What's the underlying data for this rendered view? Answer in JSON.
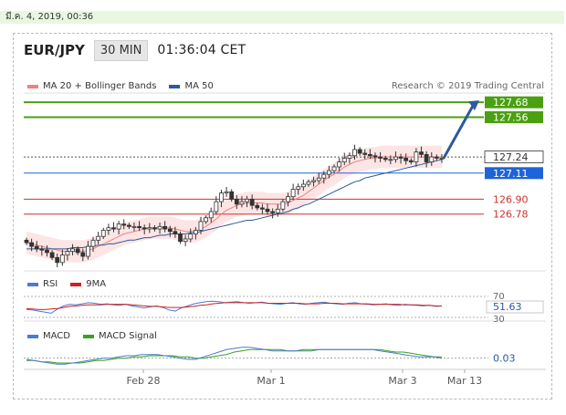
{
  "date_bar": {
    "text": "มี.ค. 4, 2019, 00:36"
  },
  "header": {
    "pair": "EUR/JPY",
    "timeframe": "30 MIN",
    "clock": "01:36:04 CET"
  },
  "legend": {
    "items": [
      {
        "label": "MA 20 + Bollinger Bands",
        "color": "#f08080"
      },
      {
        "label": "MA 50",
        "color": "#2c5a9a"
      }
    ],
    "research": "Research © 2019 Trading Central"
  },
  "rsi_legend": [
    {
      "label": "RSI",
      "color": "#4a7bd0"
    },
    {
      "label": "9MA",
      "color": "#d02020"
    }
  ],
  "macd_legend": [
    {
      "label": "MACD",
      "color": "#4a7bd0"
    },
    {
      "label": "MACD Signal",
      "color": "#3aa020"
    }
  ],
  "chart_data": {
    "type": "candlestick",
    "price_range": [
      126.33,
      127.74
    ],
    "x_ticks": [
      "Feb 28",
      "Mar 1",
      "Mar 3",
      "Mar 13"
    ],
    "levels": [
      {
        "label": "127.68",
        "value": 127.68,
        "kind": "resistance",
        "color": "#4aa010"
      },
      {
        "label": "127.56",
        "value": 127.56,
        "kind": "resistance",
        "color": "#4aa010"
      },
      {
        "label": "127.24",
        "value": 127.24,
        "kind": "last",
        "color": "#333333"
      },
      {
        "label": "127.11",
        "value": 127.11,
        "kind": "current",
        "color": "#1f63d8"
      },
      {
        "label": "126.90",
        "value": 126.9,
        "kind": "support",
        "color": "#d03030"
      },
      {
        "label": "126.78",
        "value": 126.78,
        "kind": "support",
        "color": "#d03030"
      }
    ],
    "close": [
      126.55,
      126.52,
      126.5,
      126.49,
      126.47,
      126.43,
      126.39,
      126.45,
      126.48,
      126.5,
      126.47,
      126.44,
      126.52,
      126.57,
      126.6,
      126.65,
      126.67,
      126.66,
      126.7,
      126.69,
      126.68,
      126.68,
      126.67,
      126.66,
      126.67,
      126.66,
      126.68,
      126.66,
      126.64,
      126.62,
      126.56,
      126.58,
      126.62,
      126.65,
      126.72,
      126.75,
      126.8,
      126.88,
      126.95,
      126.96,
      126.9,
      126.86,
      126.88,
      126.9,
      126.85,
      126.83,
      126.82,
      126.8,
      126.79,
      126.82,
      126.88,
      126.92,
      126.98,
      127.0,
      127.02,
      127.04,
      127.05,
      127.07,
      127.1,
      127.13,
      127.16,
      127.2,
      127.23,
      127.25,
      127.3,
      127.27,
      127.26,
      127.25,
      127.24,
      127.23,
      127.22,
      127.22,
      127.24,
      127.23,
      127.21,
      127.2,
      127.28,
      127.26,
      127.2,
      127.24,
      127.23,
      127.23
    ],
    "ma20": [
      126.55,
      126.54,
      126.53,
      126.52,
      126.51,
      126.5,
      126.49,
      126.48,
      126.48,
      126.48,
      126.48,
      126.48,
      126.49,
      126.5,
      126.52,
      126.54,
      126.56,
      126.58,
      126.6,
      126.62,
      126.63,
      126.64,
      126.65,
      126.66,
      126.67,
      126.67,
      126.67,
      126.67,
      126.67,
      126.66,
      126.65,
      126.64,
      126.64,
      126.64,
      126.66,
      126.68,
      126.71,
      126.74,
      126.78,
      126.81,
      126.83,
      126.85,
      126.86,
      126.87,
      126.87,
      126.87,
      126.87,
      126.86,
      126.86,
      126.86,
      126.86,
      126.87,
      126.89,
      126.91,
      126.93,
      126.96,
      126.99,
      127.02,
      127.05,
      127.08,
      127.1,
      127.13,
      127.16,
      127.18,
      127.2,
      127.21,
      127.22,
      127.23,
      127.23,
      127.24,
      127.24,
      127.24,
      127.24,
      127.24,
      127.24,
      127.24,
      127.24,
      127.24,
      127.24,
      127.24,
      127.24,
      127.24
    ],
    "bb_width": 0.09,
    "ma50": [
      126.5,
      126.5,
      126.5,
      126.5,
      126.5,
      126.5,
      126.5,
      126.5,
      126.5,
      126.51,
      126.51,
      126.51,
      126.52,
      126.52,
      126.53,
      126.53,
      126.54,
      126.54,
      126.55,
      126.56,
      126.57,
      126.57,
      126.58,
      126.59,
      126.59,
      126.6,
      126.61,
      126.61,
      126.62,
      126.62,
      126.62,
      126.62,
      126.63,
      126.63,
      126.64,
      126.65,
      126.66,
      126.67,
      126.68,
      126.69,
      126.7,
      126.71,
      126.72,
      126.73,
      126.73,
      126.74,
      126.75,
      126.76,
      126.77,
      126.78,
      126.79,
      126.8,
      126.82,
      126.83,
      126.85,
      126.86,
      126.88,
      126.9,
      126.92,
      126.94,
      126.96,
      126.98,
      127.0,
      127.02,
      127.04,
      127.05,
      127.07,
      127.08,
      127.09,
      127.1,
      127.11,
      127.12,
      127.13,
      127.14,
      127.15,
      127.16,
      127.17,
      127.18,
      127.19,
      127.2,
      127.21,
      127.22
    ],
    "forecast_target": 127.68,
    "rsi": {
      "range": [
        30,
        70
      ],
      "ticks": [
        "70",
        "30"
      ],
      "value_label": "51.63",
      "rsi": [
        45,
        44,
        42,
        40,
        38,
        46,
        52,
        55,
        54,
        56,
        58,
        57,
        55,
        56,
        54,
        53,
        55,
        52,
        50,
        48,
        50,
        52,
        49,
        44,
        42,
        48,
        52,
        56,
        58,
        60,
        61,
        60,
        58,
        59,
        60,
        58,
        57,
        58,
        59,
        57,
        56,
        55,
        57,
        58,
        56,
        55,
        57,
        58,
        59,
        57,
        56,
        55,
        57,
        58,
        56,
        55,
        54,
        55,
        56,
        54,
        53,
        55,
        54,
        53,
        52,
        53,
        51,
        52
      ],
      "ma9": [
        47,
        46,
        45,
        45,
        46,
        47,
        49,
        51,
        52,
        53,
        54,
        54,
        54,
        55,
        55,
        55,
        55,
        54,
        53,
        52,
        51,
        51,
        50,
        49,
        49,
        49,
        50,
        51,
        53,
        54,
        56,
        57,
        58,
        58,
        58,
        58,
        58,
        58,
        58,
        57,
        57,
        57,
        57,
        57,
        57,
        56,
        56,
        56,
        57,
        57,
        57,
        56,
        56,
        56,
        56,
        56,
        55,
        55,
        55,
        55,
        55,
        54,
        54,
        54,
        53,
        53,
        52,
        52
      ]
    },
    "macd": {
      "value_label": "0.03",
      "macd": [
        0.02,
        0.01,
        0.0,
        -0.01,
        -0.02,
        -0.02,
        -0.01,
        0.0,
        0.01,
        0.02,
        0.03,
        0.03,
        0.04,
        0.05,
        0.05,
        0.06,
        0.06,
        0.06,
        0.05,
        0.04,
        0.03,
        0.02,
        0.02,
        0.04,
        0.06,
        0.08,
        0.1,
        0.11,
        0.12,
        0.12,
        0.11,
        0.1,
        0.09,
        0.09,
        0.09,
        0.09,
        0.1,
        0.1,
        0.1,
        0.1,
        0.1,
        0.1,
        0.1,
        0.1,
        0.1,
        0.1,
        0.09,
        0.08,
        0.07,
        0.06,
        0.05,
        0.04,
        0.04,
        0.04,
        0.03
      ],
      "signal": [
        0.01,
        0.01,
        0.0,
        0.0,
        -0.01,
        -0.01,
        -0.01,
        -0.01,
        0.0,
        0.01,
        0.01,
        0.02,
        0.03,
        0.03,
        0.04,
        0.04,
        0.05,
        0.05,
        0.05,
        0.05,
        0.04,
        0.04,
        0.03,
        0.03,
        0.04,
        0.05,
        0.06,
        0.08,
        0.09,
        0.1,
        0.1,
        0.1,
        0.1,
        0.1,
        0.09,
        0.09,
        0.09,
        0.09,
        0.1,
        0.1,
        0.1,
        0.1,
        0.1,
        0.1,
        0.1,
        0.1,
        0.1,
        0.09,
        0.08,
        0.08,
        0.07,
        0.06,
        0.05,
        0.04,
        0.04
      ]
    }
  }
}
